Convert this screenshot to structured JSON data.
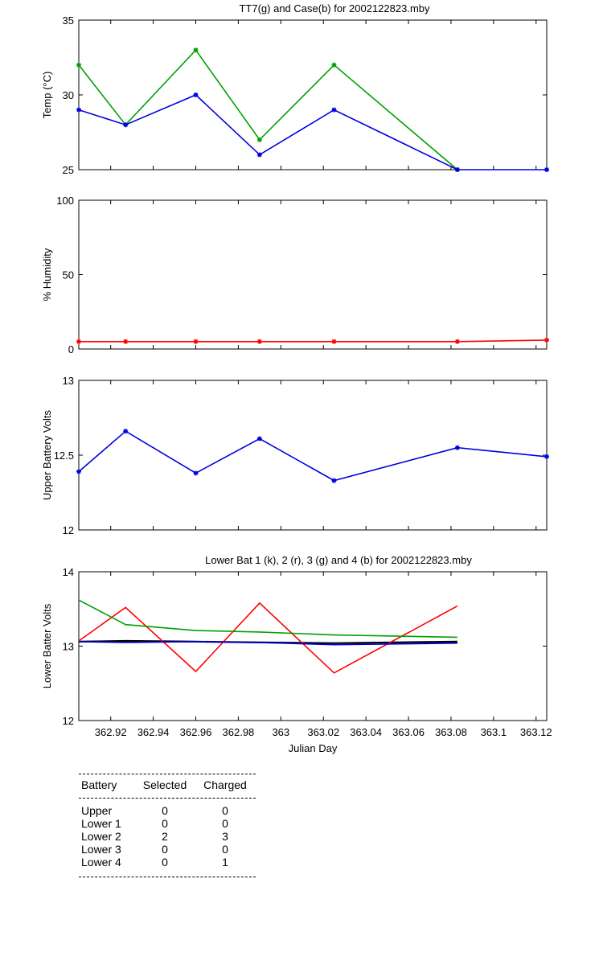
{
  "chart_data": [
    {
      "type": "line",
      "title": "TT7(g) and Case(b) for 2002122823.mby",
      "ylabel": "Temp  (°C)",
      "xlim": [
        362.905,
        363.125
      ],
      "ylim": [
        25,
        35
      ],
      "yticks": [
        "25",
        "30",
        "35"
      ],
      "series": [
        {
          "color": "#00a000",
          "markers": true,
          "x": [
            362.905,
            362.927,
            362.96,
            362.99,
            363.025,
            363.083
          ],
          "y": [
            32,
            28,
            33,
            27,
            32,
            25
          ]
        },
        {
          "color": "#0000e0",
          "markers": true,
          "x": [
            362.905,
            362.927,
            362.96,
            362.99,
            363.025,
            363.083,
            363.125
          ],
          "y": [
            29,
            28,
            30,
            26,
            29,
            25,
            25
          ]
        }
      ]
    },
    {
      "type": "line",
      "title": "",
      "ylabel": "% Humidity",
      "xlim": [
        362.905,
        363.125
      ],
      "ylim": [
        0,
        100
      ],
      "yticks": [
        "0",
        "50",
        "100"
      ],
      "series": [
        {
          "color": "#ff0000",
          "markers": true,
          "x": [
            362.905,
            362.927,
            362.96,
            362.99,
            363.025,
            363.083,
            363.125
          ],
          "y": [
            5,
            5,
            5,
            5,
            5,
            5,
            6
          ]
        }
      ]
    },
    {
      "type": "line",
      "title": "",
      "ylabel": "Upper Battery Volts",
      "xlim": [
        362.905,
        363.125
      ],
      "ylim": [
        12,
        13
      ],
      "yticks": [
        "12",
        "12.5",
        "13"
      ],
      "series": [
        {
          "color": "#0000e0",
          "markers": true,
          "x": [
            362.905,
            362.927,
            362.96,
            362.99,
            363.025,
            363.083,
            363.125
          ],
          "y": [
            12.39,
            12.66,
            12.38,
            12.61,
            12.33,
            12.55,
            12.49
          ]
        }
      ]
    },
    {
      "type": "line",
      "title": "Lower Bat 1 (k), 2 (r), 3 (g) and 4 (b) for 2002122823.mby",
      "ylabel": "Lower Batter Volts",
      "xlabel": "Julian Day",
      "xlim": [
        362.905,
        363.125
      ],
      "ylim": [
        12,
        14
      ],
      "yticks": [
        "12",
        "13",
        "14"
      ],
      "xticks": [
        {
          "v": 362.92,
          "label": "362.92"
        },
        {
          "v": 362.94,
          "label": "362.94"
        },
        {
          "v": 362.96,
          "label": "362.96"
        },
        {
          "v": 362.98,
          "label": "362.98"
        },
        {
          "v": 363.0,
          "label": "363"
        },
        {
          "v": 363.02,
          "label": "363.02"
        },
        {
          "v": 363.04,
          "label": "363.04"
        },
        {
          "v": 363.06,
          "label": "363.06"
        },
        {
          "v": 363.08,
          "label": "363.08"
        },
        {
          "v": 363.1,
          "label": "363.1"
        },
        {
          "v": 363.12,
          "label": "363.12"
        }
      ],
      "series": [
        {
          "color": "#000000",
          "markers": false,
          "x": [
            362.905,
            362.927,
            362.96,
            362.99,
            363.025,
            363.083
          ],
          "y": [
            13.06,
            13.07,
            13.06,
            13.05,
            13.04,
            13.06
          ]
        },
        {
          "color": "#ff0000",
          "markers": false,
          "x": [
            362.905,
            362.927,
            362.96,
            362.99,
            363.025,
            363.083
          ],
          "y": [
            13.07,
            13.52,
            12.66,
            13.58,
            12.64,
            13.54
          ]
        },
        {
          "color": "#00a000",
          "markers": false,
          "x": [
            362.905,
            362.927,
            362.96,
            362.99,
            363.025,
            363.083
          ],
          "y": [
            13.62,
            13.29,
            13.21,
            13.19,
            13.15,
            13.12
          ]
        },
        {
          "color": "#0000e0",
          "markers": false,
          "x": [
            362.905,
            362.927,
            362.96,
            362.99,
            363.025,
            363.083
          ],
          "y": [
            13.06,
            13.05,
            13.06,
            13.05,
            13.02,
            13.04
          ]
        }
      ]
    }
  ],
  "battery_table": {
    "headers": [
      "Battery",
      "Selected",
      "Charged"
    ],
    "rows": [
      {
        "battery": "Upper",
        "selected": "0",
        "charged": "0"
      },
      {
        "battery": "Lower 1",
        "selected": "0",
        "charged": "0"
      },
      {
        "battery": "Lower 2",
        "selected": "2",
        "charged": "3"
      },
      {
        "battery": "Lower 3",
        "selected": "0",
        "charged": "0"
      },
      {
        "battery": "Lower 4",
        "selected": "0",
        "charged": "1"
      }
    ]
  }
}
